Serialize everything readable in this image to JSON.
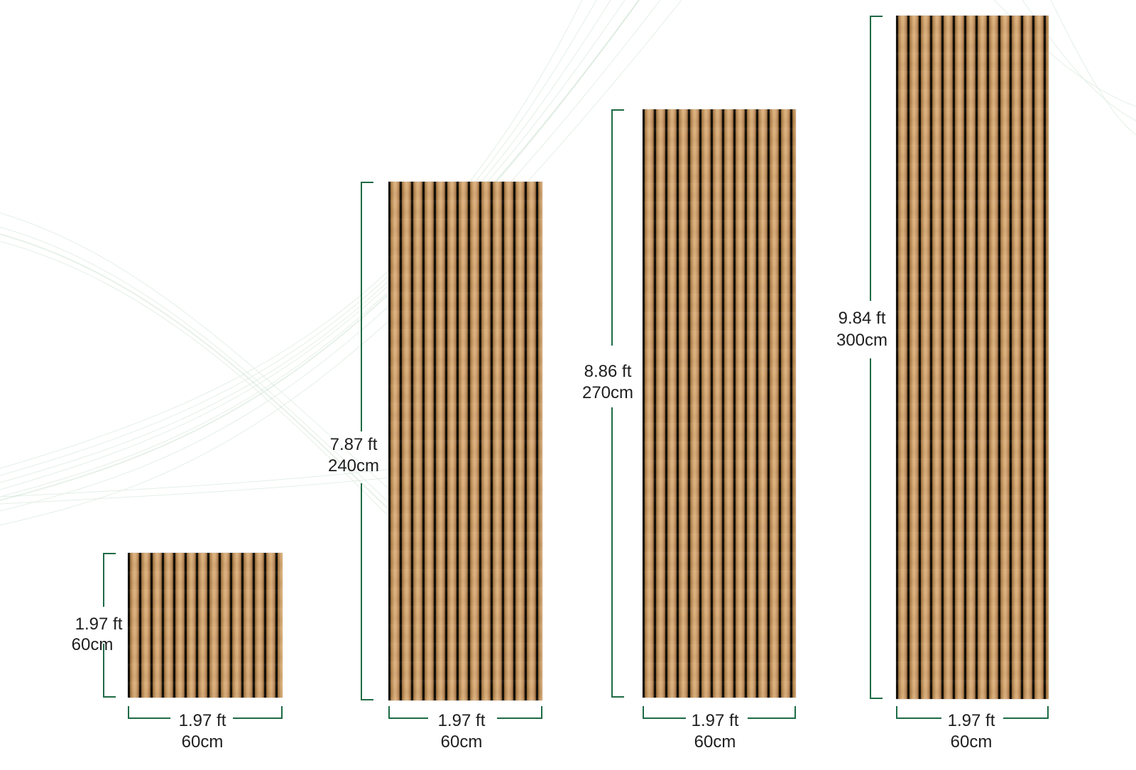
{
  "panels": [
    {
      "height_label_ft": "1.97 ft",
      "height_label_cm": "60cm",
      "width_label_ft": "1.97 ft",
      "width_label_cm": "60cm"
    },
    {
      "height_label_ft": "7.87 ft",
      "height_label_cm": "240cm",
      "width_label_ft": "1.97 ft",
      "width_label_cm": "60cm"
    },
    {
      "height_label_ft": "8.86 ft",
      "height_label_cm": "270cm",
      "width_label_ft": "1.97 ft",
      "width_label_cm": "60cm"
    },
    {
      "height_label_ft": "9.84 ft",
      "height_label_cm": "300cm",
      "width_label_ft": "1.97 ft",
      "width_label_cm": "60cm"
    }
  ],
  "colors": {
    "dimension_line": "#1e6b45",
    "slat_dark": "#141008",
    "wood_light": "#dcb27e",
    "wood_mid": "#b88a55",
    "label_text": "#1e1e1e"
  }
}
